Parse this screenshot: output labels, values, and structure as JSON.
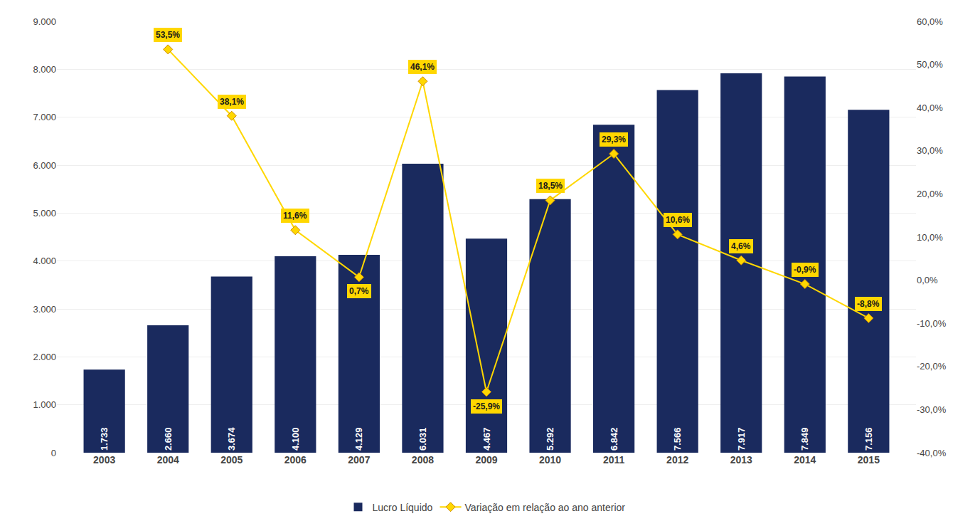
{
  "chart_data": {
    "type": "bar",
    "categories": [
      "2003",
      "2004",
      "2005",
      "2006",
      "2007",
      "2008",
      "2009",
      "2010",
      "2011",
      "2012",
      "2013",
      "2014",
      "2015"
    ],
    "series": [
      {
        "name": "Lucro Líquido",
        "type": "bar",
        "color": "#1a2a5e",
        "values": [
          1733,
          2660,
          3674,
          4100,
          4129,
          6031,
          4467,
          5292,
          6842,
          7566,
          7917,
          7849,
          7156
        ],
        "value_labels": [
          "1.733",
          "2.660",
          "3.674",
          "4.100",
          "4.129",
          "6.031",
          "4.467",
          "5.292",
          "6.842",
          "7.566",
          "7.917",
          "7.849",
          "7.156"
        ]
      },
      {
        "name": "Variação em relação ao ano anterior",
        "type": "line",
        "axis": "y2",
        "color": "#FFD700",
        "marker": "diamond",
        "values": [
          null,
          53.5,
          38.1,
          11.6,
          0.7,
          46.1,
          -25.9,
          18.5,
          29.3,
          10.6,
          4.6,
          -0.9,
          -8.8
        ],
        "value_labels": [
          null,
          "53,5%",
          "38,1%",
          "11,6%",
          "0,7%",
          "46,1%",
          "-25,9%",
          "18,5%",
          "29,3%",
          "10,6%",
          "4,6%",
          "-0,9%",
          "-8,8%"
        ]
      }
    ],
    "ylim": [
      0,
      9000
    ],
    "yticks": [
      0,
      {
        "value": 1000,
        "label": "1.000"
      },
      {
        "value": 2000,
        "label": "2.000"
      },
      {
        "value": 3000,
        "label": "3.000"
      },
      {
        "value": 4000,
        "label": "4.000"
      },
      {
        "value": 5000,
        "label": "5.000"
      },
      {
        "value": 6000,
        "label": "6.000"
      },
      {
        "value": 7000,
        "label": "7.000"
      },
      {
        "value": 8000,
        "label": "8.000"
      },
      {
        "value": 9000,
        "label": "9.000"
      }
    ],
    "y2lim": [
      -40,
      60
    ],
    "y2ticks": [
      {
        "value": -40,
        "label": "-40,0%"
      },
      {
        "value": -30,
        "label": "-30,0%"
      },
      {
        "value": -20,
        "label": "-20,0%"
      },
      {
        "value": -10,
        "label": "-10,0%"
      },
      {
        "value": 0,
        "label": "0,0%"
      },
      {
        "value": 10,
        "label": "10,0%"
      },
      {
        "value": 20,
        "label": "20,0%"
      },
      {
        "value": 30,
        "label": "30,0%"
      },
      {
        "value": 40,
        "label": "40,0%"
      },
      {
        "value": 50,
        "label": "50,0%"
      },
      {
        "value": 60,
        "label": "60,0%"
      }
    ],
    "grid": true,
    "legend": "bottom",
    "data_labels": true
  }
}
